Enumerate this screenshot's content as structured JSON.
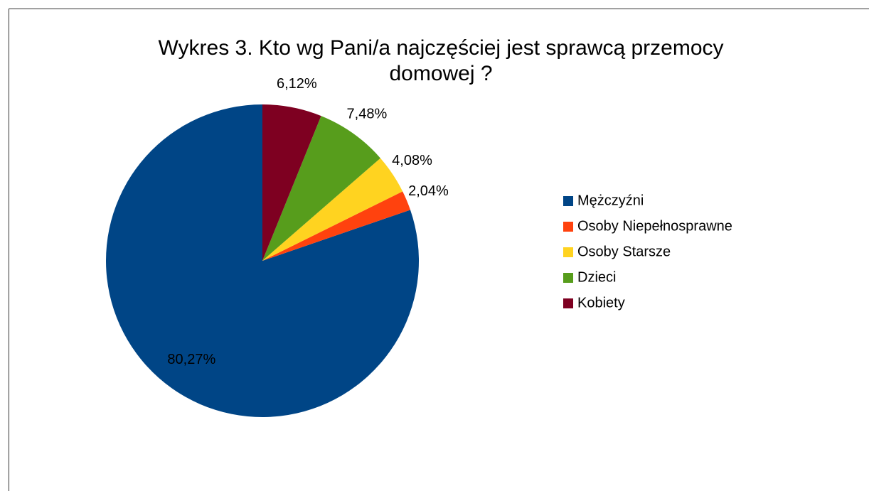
{
  "chart_data": {
    "type": "pie",
    "title": "Wykres 3. Kto wg Pani/a najczęściej jest sprawcą przemocy domowej ?",
    "categories": [
      "Mężczyźni",
      "Osoby Niepełnosprawne",
      "Osoby Starsze",
      "Dzieci",
      "Kobiety"
    ],
    "values": [
      80.27,
      2.04,
      4.08,
      7.48,
      6.12
    ],
    "value_labels": [
      "80,27%",
      "2,04%",
      "4,08%",
      "7,48%",
      "6,12%"
    ],
    "colors": [
      "#004586",
      "#ff420e",
      "#ffd320",
      "#579d1c",
      "#7e0021"
    ],
    "legend": "right"
  }
}
